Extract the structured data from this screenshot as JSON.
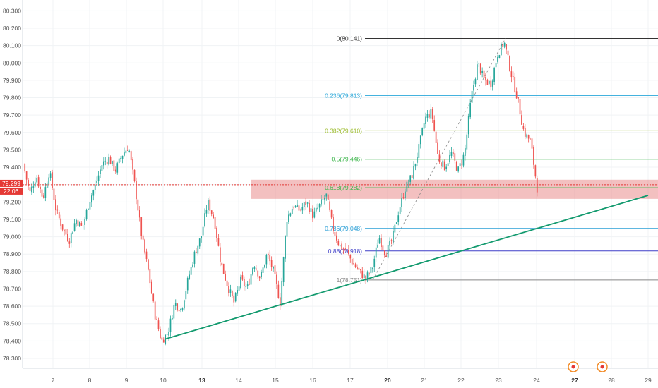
{
  "chart_data": {
    "type": "candlestick",
    "y_axis": {
      "position": "left",
      "range": [
        78.22,
        80.34
      ],
      "ticks": [
        "80.300",
        "80.200",
        "80.100",
        "80.000",
        "79.900",
        "79.800",
        "79.700",
        "79.600",
        "79.500",
        "79.400",
        "79.300",
        "79.200",
        "79.100",
        "79.000",
        "78.900",
        "78.800",
        "78.700",
        "78.600",
        "78.500",
        "78.400",
        "78.300"
      ]
    },
    "x_axis": {
      "ticks": [
        {
          "label": "7",
          "bold": false
        },
        {
          "label": "8",
          "bold": false
        },
        {
          "label": "9",
          "bold": false
        },
        {
          "label": "10",
          "bold": false
        },
        {
          "label": "13",
          "bold": true
        },
        {
          "label": "14",
          "bold": false
        },
        {
          "label": "15",
          "bold": false
        },
        {
          "label": "16",
          "bold": false
        },
        {
          "label": "17",
          "bold": false
        },
        {
          "label": "20",
          "bold": true
        },
        {
          "label": "21",
          "bold": false
        },
        {
          "label": "22",
          "bold": false
        },
        {
          "label": "23",
          "bold": false
        },
        {
          "label": "24",
          "bold": false
        },
        {
          "label": "27",
          "bold": true
        },
        {
          "label": "28",
          "bold": false
        },
        {
          "label": "29",
          "bold": false
        }
      ]
    },
    "current_price": {
      "value": "79.299",
      "countdown": "22:06",
      "level": 79.299,
      "color": "#e53935"
    },
    "fib_levels": [
      {
        "label": "0(80.141)",
        "price": 80.141,
        "color": "#333333"
      },
      {
        "label": "0.236(79.813)",
        "price": 79.813,
        "color": "#2aa7d9"
      },
      {
        "label": "0.382(79.610)",
        "price": 79.61,
        "color": "#9bbb2a"
      },
      {
        "label": "0.5(79.446)",
        "price": 79.446,
        "color": "#3bb54a"
      },
      {
        "label": "0.618(79.282)",
        "price": 79.282,
        "color": "#3bb54a"
      },
      {
        "label": "0.786(79.048)",
        "price": 79.048,
        "color": "#2a9fd6"
      },
      {
        "label": "0.88(78.918)",
        "price": 78.918,
        "color": "#3f3fc8"
      },
      {
        "label": "1(78.751)",
        "price": 78.751,
        "color": "#888888"
      }
    ],
    "zone": {
      "from": 79.218,
      "to": 79.328,
      "color": "#e57373"
    },
    "trendline": {
      "color": "#129a6e"
    },
    "candle_colors": {
      "up": "#26a69a",
      "down": "#ef5350"
    },
    "path": [
      79.42,
      79.25,
      79.35,
      79.22,
      79.38,
      79.15,
      79.05,
      78.98,
      79.1,
      79.05,
      79.2,
      79.3,
      79.42,
      79.45,
      79.38,
      79.47,
      79.52,
      79.28,
      79.0,
      78.8,
      78.55,
      78.4,
      78.45,
      78.62,
      78.58,
      78.75,
      78.9,
      79.0,
      79.2,
      79.1,
      78.85,
      78.72,
      78.62,
      78.75,
      78.7,
      78.85,
      78.76,
      78.9,
      78.8,
      78.62,
      79.1,
      79.18,
      79.15,
      79.2,
      79.12,
      79.18,
      79.24,
      79.05,
      78.95,
      78.92,
      78.85,
      78.8,
      78.76,
      78.82,
      79.0,
      78.9,
      78.98,
      79.15,
      79.28,
      79.35,
      79.5,
      79.68,
      79.72,
      79.45,
      79.4,
      79.48,
      79.38,
      79.48,
      79.8,
      80.0,
      79.9,
      79.88,
      80.05,
      80.12,
      79.95,
      79.8,
      79.6,
      79.55,
      79.28
    ]
  },
  "icons": {
    "event_marker": "event-circle-icon"
  }
}
